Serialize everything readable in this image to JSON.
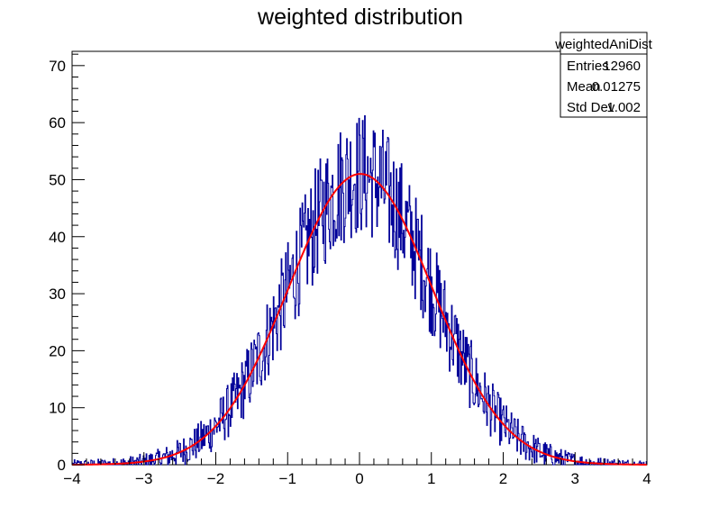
{
  "chart_data": {
    "type": "histogram",
    "title": "weighted distribution",
    "xlabel": "",
    "ylabel": "",
    "xlim": [
      -4,
      4
    ],
    "ylim": [
      0,
      72.5
    ],
    "x_ticks": [
      "−4",
      "−3",
      "−2",
      "−1",
      "0",
      "1",
      "2",
      "3",
      "4"
    ],
    "y_ticks": [
      "0",
      "10",
      "20",
      "30",
      "40",
      "50",
      "60",
      "70"
    ],
    "grid": false,
    "bins": 800,
    "histogram_color": "#000099",
    "fit": {
      "type": "gaus",
      "color": "#ff0000",
      "constant": 51,
      "mean": 0.01275,
      "sigma": 1.002
    },
    "stats_box": {
      "name": "weightedAniDist",
      "entries_label": "Entries",
      "entries_value": "12960",
      "mean_label": "Mean",
      "mean_value": "0.01275",
      "stddev_label": "Std Dev",
      "stddev_value": "1.002"
    }
  }
}
